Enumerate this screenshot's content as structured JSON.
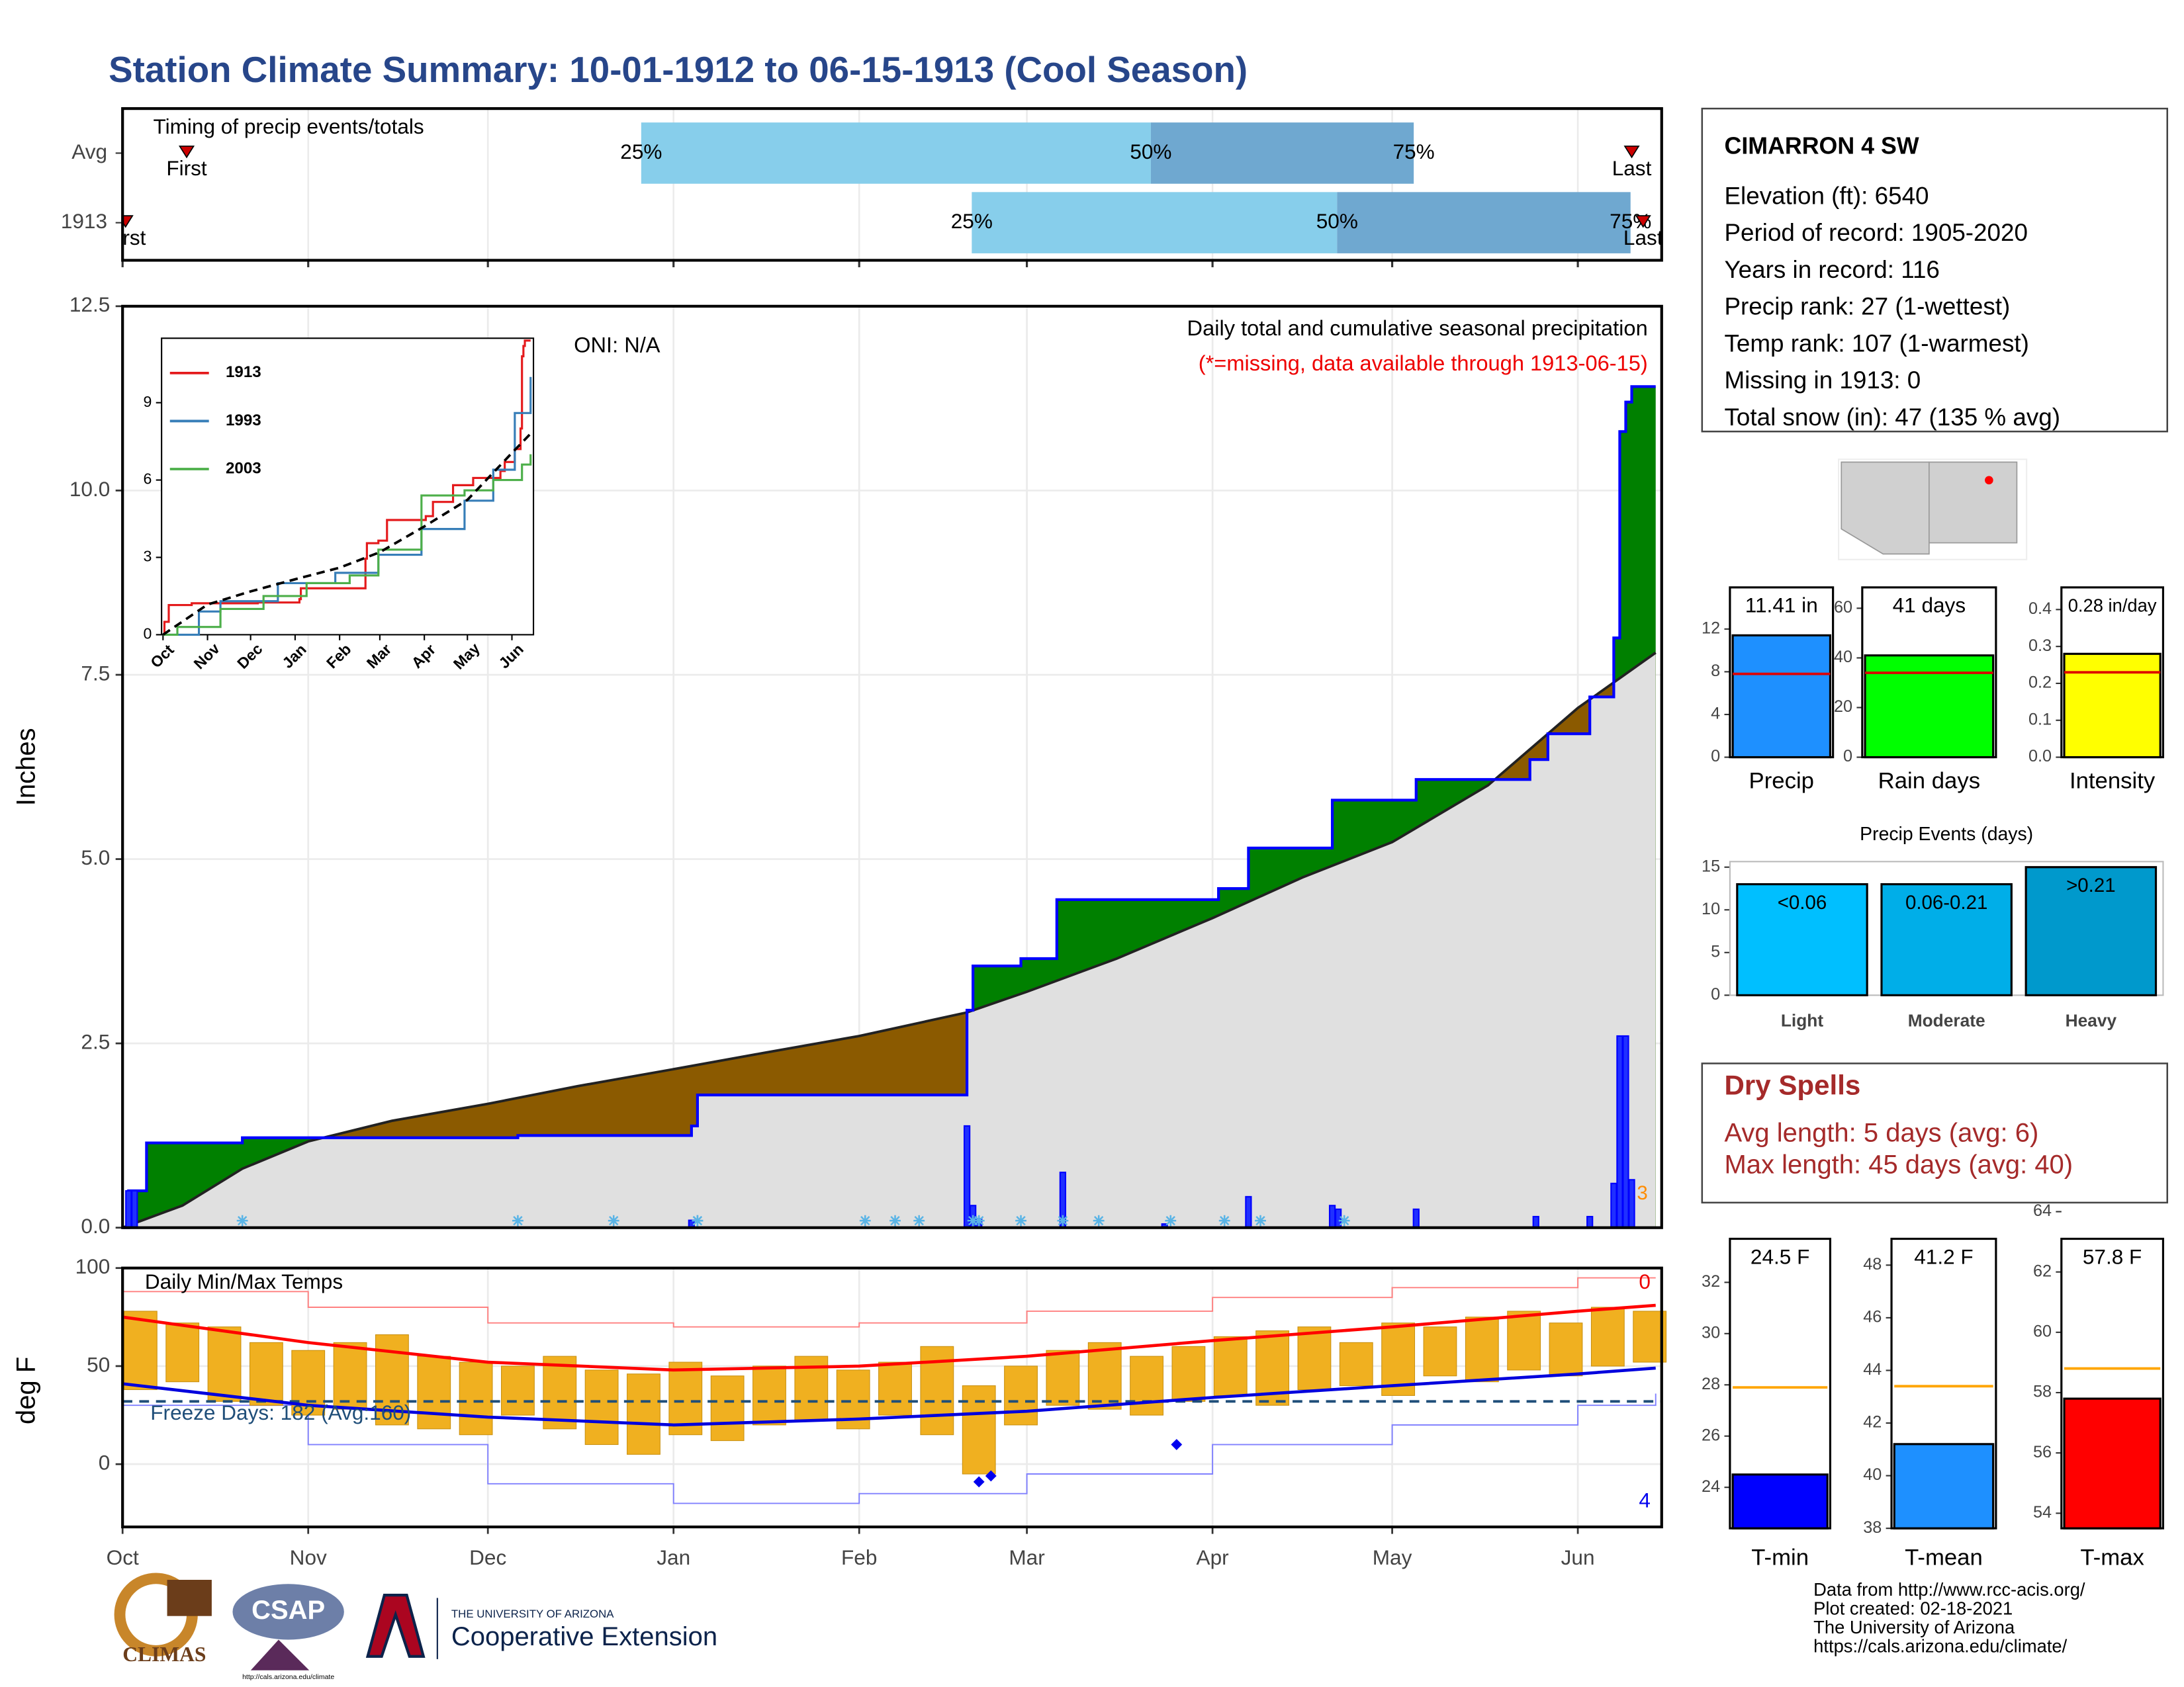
{
  "title": "Station Climate Summary: 10-01-1912 to 06-15-1913 (Cool Season)",
  "station": {
    "name": "CIMARRON 4 SW",
    "lines": [
      "Elevation (ft): 6540",
      "Period of record: 1905-2020",
      "Years in record: 116",
      "Precip rank: 27 (1-wettest)",
      "Temp rank: 107 (1-warmest)",
      "Missing in 1913: 0",
      "Total snow (in): 47 (135 % avg)"
    ]
  },
  "dry_spells": {
    "title": "Dry Spells",
    "lines": [
      "Avg length: 5 days (avg: 6)",
      "Max length: 45 days (avg: 40)"
    ]
  },
  "footer": [
    "Data from http://www.rcc-acis.org/",
    "Plot created: 02-18-2021",
    "The University of Arizona",
    "https://cals.arizona.edu/climate/"
  ],
  "logos": {
    "climas": "CLIMAS",
    "csap": "CSAP",
    "csap_url": "http://cals.arizona.edu/climate",
    "ua_line1": "THE UNIVERSITY OF ARIZONA",
    "ua_line2": "Cooperative Extension"
  },
  "chart_data": [
    {
      "type": "timing",
      "title": "Timing of precip events/totals",
      "categories": [
        "Avg",
        "1913"
      ],
      "first": [
        10.7,
        0.5
      ],
      "p25": [
        86.6,
        141.8
      ],
      "p50": [
        171.7,
        202.8
      ],
      "p75": [
        215.6,
        251.8
      ],
      "last": [
        252,
        253.9
      ],
      "point_labels": {
        "first": "First",
        "last": "Last",
        "p25": "25%",
        "p50": "50%",
        "p75": "75%"
      },
      "colors": {
        "low": "#87ceeb",
        "high": "#6fa8d0",
        "marker": "#cc0000"
      },
      "xlim": [
        0,
        257
      ]
    },
    {
      "type": "cumulative_precip",
      "title": "Daily total and cumulative seasonal precipitation",
      "subtitle": "(*=missing, data available through 1913-06-15)",
      "annotation": "ONI: N/A",
      "y_label": "Inches",
      "count_label": "3",
      "observed": {
        "color": "#0000ff",
        "x": [
          0,
          1,
          4,
          20,
          66,
          95,
          96,
          141,
          142,
          150,
          156,
          183,
          188,
          202,
          216,
          235,
          238,
          245,
          249,
          250,
          251,
          252,
          256
        ],
        "values": [
          0,
          0.5,
          1.15,
          1.22,
          1.25,
          1.38,
          1.8,
          2.95,
          3.55,
          3.65,
          4.45,
          4.6,
          5.15,
          5.8,
          6.08,
          6.35,
          6.7,
          7.2,
          8.0,
          10.8,
          11.2,
          11.41,
          11.41
        ]
      },
      "average": {
        "color": "#222222",
        "x": [
          0,
          10,
          20,
          31,
          45,
          61,
          76,
          92,
          107,
          123,
          141,
          151,
          166,
          182,
          197,
          212,
          228,
          243,
          256
        ],
        "values": [
          0,
          0.3,
          0.8,
          1.17,
          1.45,
          1.68,
          1.92,
          2.15,
          2.37,
          2.6,
          2.92,
          3.2,
          3.65,
          4.2,
          4.75,
          5.23,
          6.0,
          7.05,
          7.8
        ]
      },
      "daily": {
        "color": "#0000ff",
        "x": [
          1,
          2,
          95,
          141,
          142,
          143,
          157,
          174,
          188,
          202,
          203,
          216,
          236,
          245,
          249,
          250,
          251,
          252
        ],
        "values": [
          0.5,
          0.5,
          0.1,
          1.38,
          0.3,
          0.12,
          0.75,
          0.05,
          0.42,
          0.3,
          0.25,
          0.25,
          0.15,
          0.15,
          0.6,
          2.6,
          2.6,
          0.65
        ]
      },
      "missing_x": [
        20,
        66,
        82,
        96,
        96,
        124,
        129,
        133,
        142,
        143,
        150,
        157,
        163,
        175,
        184,
        190,
        204
      ],
      "missing_color": "#5ab4e6",
      "above_color": "#008000",
      "below_color": "#8b5a00",
      "base_color": "#e0e0e0",
      "xlim": [
        0,
        257
      ],
      "ylim": [
        0,
        12.5
      ],
      "yticks": [
        {
          "value": 0,
          "label": "0.0"
        },
        {
          "value": 2.5,
          "label": "2.5"
        },
        {
          "value": 5,
          "label": "5.0"
        },
        {
          "value": 7.5,
          "label": "7.5"
        },
        {
          "value": 10,
          "label": "10.0"
        },
        {
          "value": 12.5,
          "label": "12.5"
        }
      ],
      "grid": true
    },
    {
      "type": "line",
      "series": [
        {
          "name": "1913",
          "color": "#e41a1c",
          "step": true,
          "x": [
            0,
            1,
            4,
            20,
            66,
            95,
            96,
            141,
            142,
            150,
            156,
            183,
            188,
            202,
            216,
            235,
            238,
            245,
            249,
            250,
            251,
            252,
            256
          ],
          "values": [
            0,
            0.5,
            1.15,
            1.22,
            1.25,
            1.38,
            1.8,
            2.95,
            3.55,
            3.65,
            4.45,
            4.6,
            5.15,
            5.8,
            6.08,
            6.35,
            6.7,
            7.2,
            8.0,
            10.8,
            11.2,
            11.41,
            11.41
          ]
        },
        {
          "name": "1993",
          "color": "#377eb8",
          "step": true,
          "x": [
            0,
            20,
            25,
            40,
            80,
            120,
            150,
            180,
            210,
            230,
            245,
            256
          ],
          "values": [
            0,
            0,
            0.9,
            1.3,
            2.0,
            2.4,
            3.1,
            4.1,
            5.2,
            6.4,
            8.6,
            10.0
          ]
        },
        {
          "name": "2003",
          "color": "#4daf4a",
          "step": true,
          "x": [
            0,
            10,
            40,
            70,
            100,
            130,
            150,
            180,
            210,
            230,
            250,
            256
          ],
          "values": [
            0,
            0.3,
            1.0,
            1.5,
            2.0,
            2.3,
            3.3,
            5.4,
            5.6,
            6.0,
            6.6,
            7.0
          ]
        },
        {
          "color": "#000000",
          "dashed": true,
          "x": [
            0,
            31,
            61,
            92,
            123,
            151,
            182,
            212,
            243,
            256
          ],
          "values": [
            0,
            1.17,
            1.68,
            2.15,
            2.6,
            3.2,
            4.2,
            5.23,
            7.05,
            7.8
          ]
        }
      ],
      "xlim": [
        -1,
        258
      ],
      "xticks": [
        {
          "value": 0,
          "label": "Oct"
        },
        {
          "value": 31,
          "label": "Nov"
        },
        {
          "value": 61,
          "label": "Dec"
        },
        {
          "value": 92,
          "label": "Jan"
        },
        {
          "value": 123,
          "label": "Feb"
        },
        {
          "value": 151,
          "label": "Mar"
        },
        {
          "value": 182,
          "label": "Apr"
        },
        {
          "value": 212,
          "label": "May"
        },
        {
          "value": 243,
          "label": "Jun"
        }
      ],
      "ylim": [
        0,
        11.5
      ],
      "yticks": [
        0,
        3,
        6,
        9
      ]
    },
    {
      "type": "temps",
      "title": "Daily Min/Max Temps",
      "y_label": "deg F",
      "annotation": "Freeze Days: 182 (Avg:160)",
      "record_high_count": "0",
      "record_low_count": "4",
      "freeze_line": 32,
      "x": [
        3,
        10,
        17,
        24,
        31,
        38,
        45,
        52,
        59,
        66,
        73,
        80,
        87,
        94,
        101,
        108,
        115,
        122,
        129,
        136,
        143,
        150,
        157,
        164,
        171,
        178,
        185,
        192,
        199,
        206,
        213,
        220,
        227,
        234,
        241,
        248,
        255
      ],
      "high": [
        78,
        72,
        70,
        62,
        58,
        62,
        66,
        55,
        52,
        50,
        55,
        48,
        46,
        52,
        45,
        50,
        55,
        48,
        52,
        60,
        40,
        50,
        58,
        62,
        55,
        60,
        65,
        68,
        70,
        62,
        72,
        70,
        75,
        78,
        72,
        80,
        78
      ],
      "low": [
        38,
        42,
        32,
        30,
        25,
        28,
        20,
        18,
        15,
        25,
        18,
        10,
        5,
        15,
        12,
        20,
        22,
        18,
        25,
        15,
        -5,
        20,
        30,
        28,
        25,
        32,
        35,
        30,
        38,
        40,
        35,
        45,
        42,
        48,
        45,
        50,
        52
      ],
      "bar_color": "#f0b020",
      "averages": {
        "x": [
          0,
          31,
          61,
          92,
          123,
          151,
          182,
          212,
          243,
          256
        ],
        "high": [
          75,
          62,
          52,
          48,
          50,
          55,
          63,
          70,
          78,
          81
        ],
        "low": [
          41,
          30,
          24,
          20,
          23,
          27,
          34,
          40,
          46,
          49
        ],
        "record_high": [
          88,
          80,
          72,
          70,
          72,
          78,
          85,
          90,
          95,
          95
        ],
        "record_low": [
          30,
          10,
          -10,
          -20,
          -15,
          -5,
          10,
          20,
          30,
          36
        ]
      },
      "record_low_marks": {
        "x": [
          143,
          145,
          176
        ],
        "values": [
          -9,
          -6,
          10
        ]
      },
      "colors": {
        "high": "#ff0000",
        "low": "#0000dd",
        "record_high": "#ff8080",
        "record_low": "#8080ff",
        "freeze": "#1f4e79"
      },
      "xlim": [
        0,
        257
      ],
      "xticks": [
        {
          "value": 0,
          "label": "Oct"
        },
        {
          "value": 31,
          "label": "Nov"
        },
        {
          "value": 61,
          "label": "Dec"
        },
        {
          "value": 92,
          "label": "Jan"
        },
        {
          "value": 123,
          "label": "Feb"
        },
        {
          "value": 151,
          "label": "Mar"
        },
        {
          "value": 182,
          "label": "Apr"
        },
        {
          "value": 212,
          "label": "May"
        },
        {
          "value": 243,
          "label": "Jun"
        }
      ],
      "ylim": [
        -32,
        100
      ],
      "yticks": [
        0,
        50,
        100
      ],
      "grid": true
    },
    {
      "type": "bar",
      "categories": [
        "Precip"
      ],
      "values": [
        11.41
      ],
      "value_labels": [
        "11.41 in"
      ],
      "reference": 7.8,
      "color": "#1e90ff",
      "reference_color": "#dd0000",
      "ylim": [
        0,
        15.9
      ],
      "yticks": [
        0,
        4,
        8,
        12
      ]
    },
    {
      "type": "bar",
      "categories": [
        "Rain days"
      ],
      "values": [
        41
      ],
      "value_labels": [
        "41 days"
      ],
      "reference": 34,
      "color": "#00ff00",
      "reference_color": "#dd0000",
      "ylim": [
        0,
        68.4
      ],
      "yticks": [
        0,
        20,
        40,
        60
      ]
    },
    {
      "type": "bar",
      "categories": [
        "Intensity"
      ],
      "values": [
        0.28
      ],
      "value_labels": [
        "0.28 in/day"
      ],
      "reference": 0.23,
      "color": "#ffff00",
      "reference_color": "#dd0000",
      "ylim": [
        0,
        0.46
      ],
      "yticks": [
        {
          "value": 0,
          "label": "0.0"
        },
        {
          "value": 0.1,
          "label": "0.1"
        },
        {
          "value": 0.2,
          "label": "0.2"
        },
        {
          "value": 0.3,
          "label": "0.3"
        },
        {
          "value": 0.4,
          "label": "0.4"
        }
      ]
    },
    {
      "type": "bar",
      "title": "Precip Events (days)",
      "categories": [
        "Light",
        "Moderate",
        "Heavy"
      ],
      "values": [
        13,
        13,
        15
      ],
      "value_labels": [
        "<0.06",
        "0.06-0.21",
        ">0.21"
      ],
      "colors": [
        "#00bfff",
        "#00aee8",
        "#0099cc"
      ],
      "ylim": [
        0,
        15.65
      ],
      "yticks": [
        0,
        5,
        10,
        15
      ]
    },
    {
      "type": "bar",
      "categories": [
        "T-min"
      ],
      "values": [
        24.5
      ],
      "value_labels": [
        "24.5 F"
      ],
      "reference": 27.9,
      "color": "#0000ff",
      "reference_color": "#ffa500",
      "ylim": [
        22.4,
        33.7
      ],
      "yticks": [
        24,
        26,
        28,
        30,
        32
      ]
    },
    {
      "type": "bar",
      "categories": [
        "T-mean"
      ],
      "values": [
        41.2
      ],
      "value_labels": [
        "41.2 F"
      ],
      "reference": 43.4,
      "color": "#1e90ff",
      "reference_color": "#ffa500",
      "ylim": [
        38,
        49
      ],
      "yticks": [
        38,
        40,
        42,
        44,
        46,
        48
      ]
    },
    {
      "type": "bar",
      "categories": [
        "T-max"
      ],
      "values": [
        57.8
      ],
      "value_labels": [
        "57.8 F"
      ],
      "reference": 58.8,
      "color": "#ff0000",
      "reference_color": "#ffa500",
      "ylim": [
        53.5,
        63.1
      ],
      "yticks": [
        54,
        56,
        58,
        60,
        62,
        64
      ]
    }
  ]
}
